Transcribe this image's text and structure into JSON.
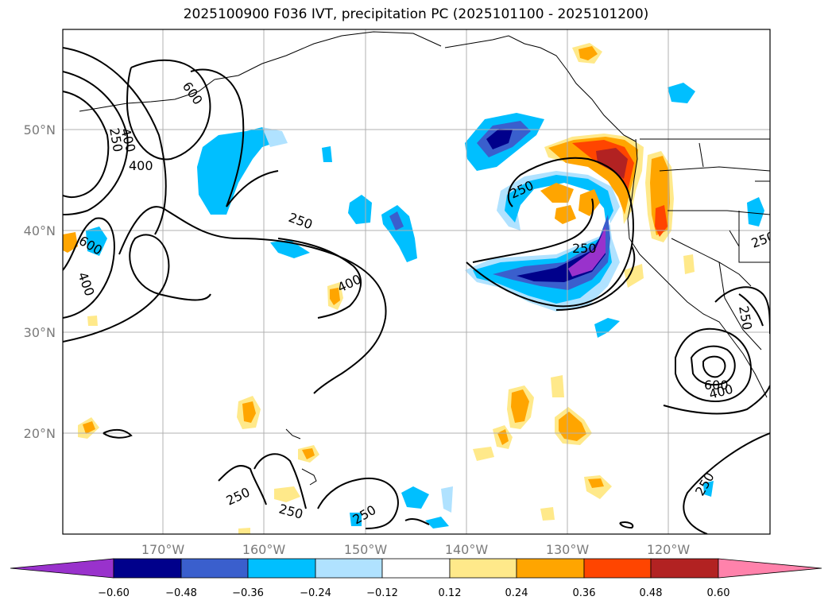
{
  "title": "2025100900 F036 IVT, precipitation PC (2025101100 - 2025101200)",
  "lat_labels": [
    "50°N",
    "40°N",
    "30°N",
    "20°N"
  ],
  "lon_labels": [
    "170°W",
    "160°W",
    "150°W",
    "140°W",
    "130°W",
    "120°W"
  ],
  "contour_labels": [
    "600",
    "400",
    "250",
    "400",
    "600",
    "400",
    "250",
    "400",
    "250",
    "250",
    "250",
    "250",
    "250",
    "250",
    "600",
    "400",
    "250",
    "250"
  ],
  "colorbar": {
    "ticks": [
      "−0.60",
      "−0.48",
      "−0.36",
      "−0.24",
      "−0.12",
      "0.12",
      "0.24",
      "0.36",
      "0.48",
      "0.60"
    ],
    "colors": [
      "#9932cc",
      "#00008b",
      "#3a5fcd",
      "#00bfff",
      "#b0e2ff",
      "#ffffff",
      "#ffe98a",
      "#ffa500",
      "#ff4500",
      "#b22222",
      "#ff82ab"
    ]
  }
}
